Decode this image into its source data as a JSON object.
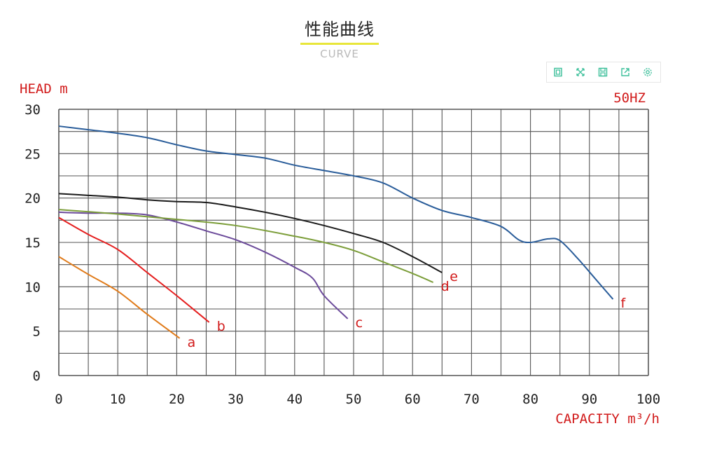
{
  "header": {
    "title": "性能曲线",
    "subtitle": "CURVE"
  },
  "toolbar": {
    "icons": [
      "data-view-icon",
      "zoom-icon",
      "restore-icon",
      "save-image-icon",
      "settings-icon"
    ],
    "icon_color": "#3bbf9a"
  },
  "chart_data": {
    "type": "line",
    "title": "性能曲线",
    "subtitle": "CURVE",
    "xlabel": "CAPACITY m³/h",
    "ylabel": "HEAD m",
    "frequency_label": "50HZ",
    "xlim": [
      0,
      100
    ],
    "ylim": [
      0,
      30
    ],
    "x_ticks": [
      "0",
      "10",
      "20",
      "30",
      "40",
      "50",
      "60",
      "70",
      "80",
      "90",
      "100"
    ],
    "y_ticks": [
      "0",
      "5",
      "10",
      "15",
      "20",
      "25",
      "30"
    ],
    "grid": true,
    "series": [
      {
        "name": "a",
        "color": "#e07b1a",
        "x": [
          0,
          5,
          10,
          15,
          20.5
        ],
        "y": [
          13.4,
          11.4,
          9.5,
          6.9,
          4.2
        ]
      },
      {
        "name": "b",
        "color": "#e51f1f",
        "x": [
          0,
          5,
          10,
          15,
          20,
          25.5
        ],
        "y": [
          17.8,
          15.9,
          14.2,
          11.6,
          9.0,
          6.0
        ]
      },
      {
        "name": "c",
        "color": "#6b4a9a",
        "x": [
          0,
          5,
          10,
          15,
          20,
          25,
          30,
          35,
          40,
          43,
          45,
          49
        ],
        "y": [
          18.4,
          18.3,
          18.3,
          18.1,
          17.3,
          16.3,
          15.3,
          13.9,
          12.2,
          11.0,
          9.0,
          6.4
        ]
      },
      {
        "name": "d",
        "color": "#7c9e3a",
        "x": [
          0,
          10,
          20,
          30,
          40,
          45,
          50,
          55,
          60,
          63.5
        ],
        "y": [
          18.7,
          18.2,
          17.6,
          16.9,
          15.7,
          15.0,
          14.1,
          12.8,
          11.5,
          10.5
        ]
      },
      {
        "name": "e",
        "color": "#1a1a1a",
        "x": [
          0,
          5,
          10,
          15,
          20,
          25,
          30,
          35,
          40,
          45,
          50,
          55,
          60,
          65
        ],
        "y": [
          20.5,
          20.3,
          20.1,
          19.8,
          19.6,
          19.5,
          19.0,
          18.4,
          17.7,
          16.9,
          16.0,
          15.0,
          13.4,
          11.6
        ]
      },
      {
        "name": "f",
        "color": "#2a5d9a",
        "x": [
          0,
          5,
          10,
          15,
          20,
          25,
          30,
          35,
          40,
          45,
          50,
          55,
          60,
          65,
          70,
          75,
          78,
          80,
          83,
          85,
          88,
          91,
          94
        ],
        "y": [
          28.1,
          27.7,
          27.3,
          26.8,
          26.0,
          25.3,
          24.9,
          24.5,
          23.7,
          23.1,
          22.5,
          21.7,
          20.0,
          18.6,
          17.8,
          16.8,
          15.3,
          15.0,
          15.4,
          15.2,
          13.2,
          10.9,
          8.6
        ]
      }
    ],
    "label_color": "#d11a1a"
  }
}
